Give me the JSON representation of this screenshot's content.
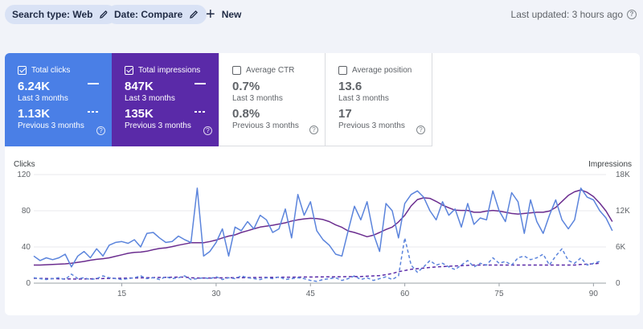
{
  "filters": {
    "search_type": "Search type: Web",
    "date": "Date: Compare",
    "new_label": "New"
  },
  "last_updated": "Last updated: 3 hours ago",
  "metrics": [
    {
      "label": "Total clicks",
      "checked": true,
      "current": "6.24K",
      "current_period": "Last 3 months",
      "previous": "1.13K",
      "previous_period": "Previous 3 months",
      "color": "#4a7fe6"
    },
    {
      "label": "Total impressions",
      "checked": true,
      "current": "847K",
      "current_period": "Last 3 months",
      "previous": "135K",
      "previous_period": "Previous 3 months",
      "color": "#5a2aa8"
    },
    {
      "label": "Average CTR",
      "checked": false,
      "current": "0.7%",
      "current_period": "Last 3 months",
      "previous": "0.8%",
      "previous_period": "Previous 3 months"
    },
    {
      "label": "Average position",
      "checked": false,
      "current": "13.6",
      "current_period": "Last 3 months",
      "previous": "17",
      "previous_period": "Previous 3 months"
    }
  ],
  "chart_data": {
    "type": "line",
    "ylabel_left": "Clicks",
    "ylabel_right": "Impressions",
    "ylim_left": [
      0,
      120
    ],
    "ylim_right": [
      0,
      18000
    ],
    "yticks_left": [
      "0",
      "40",
      "80",
      "120"
    ],
    "yticks_right": [
      "0",
      "6K",
      "12K",
      "18K"
    ],
    "xticks": [
      "15",
      "30",
      "45",
      "60",
      "75",
      "90"
    ],
    "x_range": [
      1,
      92
    ],
    "grid": true,
    "series": [
      {
        "name": "Total clicks",
        "axis": "left",
        "style": "solid",
        "color": "#5b84dc",
        "values": [
          30,
          25,
          28,
          26,
          28,
          32,
          18,
          30,
          35,
          28,
          38,
          30,
          42,
          45,
          46,
          44,
          48,
          40,
          55,
          56,
          50,
          45,
          46,
          52,
          48,
          45,
          105,
          30,
          35,
          45,
          60,
          30,
          62,
          58,
          68,
          60,
          75,
          70,
          56,
          60,
          82,
          50,
          98,
          75,
          90,
          58,
          48,
          42,
          32,
          30,
          58,
          85,
          70,
          90,
          55,
          35,
          88,
          80,
          50,
          88,
          98,
          102,
          95,
          80,
          70,
          90,
          75,
          82,
          62,
          88,
          65,
          72,
          70,
          102,
          80,
          68,
          100,
          90,
          55,
          92,
          68,
          55,
          75,
          92,
          70,
          60,
          70,
          105,
          95,
          92,
          80,
          72,
          58
        ]
      },
      {
        "name": "Total impressions",
        "axis": "right",
        "style": "solid",
        "color": "#6b2d8f",
        "values": [
          3000,
          3000,
          3050,
          3100,
          3150,
          3200,
          3300,
          3450,
          3600,
          3800,
          3950,
          4050,
          4200,
          4450,
          4700,
          4950,
          5100,
          5150,
          5300,
          5550,
          5750,
          5850,
          6050,
          6300,
          6500,
          6700,
          6700,
          6700,
          6900,
          7150,
          7500,
          7800,
          8000,
          8400,
          8700,
          9000,
          9300,
          9450,
          9600,
          9800,
          10000,
          10300,
          10500,
          10650,
          10750,
          10700,
          10550,
          10200,
          9650,
          9250,
          8650,
          8400,
          8050,
          7700,
          7950,
          8400,
          8900,
          9300,
          10150,
          11250,
          12800,
          13850,
          14150,
          14050,
          13550,
          12950,
          12500,
          12100,
          12050,
          12050,
          11750,
          11750,
          11950,
          12050,
          11950,
          11750,
          11550,
          11450,
          11550,
          11650,
          11750,
          11750,
          11950,
          12550,
          13550,
          14550,
          15150,
          15450,
          15050,
          14350,
          13250,
          11950,
          10200
        ]
      },
      {
        "name": "Total clicks (previous)",
        "axis": "left",
        "style": "dashed",
        "color": "#5b84dc",
        "values": [
          6,
          5,
          4,
          5,
          6,
          4,
          10,
          5,
          6,
          4,
          5,
          8,
          6,
          5,
          4,
          5,
          6,
          8,
          5,
          6,
          4,
          7,
          5,
          6,
          8,
          4,
          5,
          6,
          5,
          7,
          4,
          6,
          5,
          8,
          6,
          5,
          4,
          6,
          5,
          7,
          4,
          5,
          6,
          5,
          3,
          2,
          4,
          5,
          6,
          3,
          5,
          8,
          4,
          6,
          3,
          5,
          7,
          4,
          8,
          50,
          20,
          12,
          18,
          25,
          20,
          22,
          18,
          15,
          20,
          25,
          18,
          22,
          20,
          28,
          22,
          24,
          20,
          28,
          30,
          26,
          28,
          32,
          20,
          30,
          38,
          25,
          22,
          28,
          20,
          22,
          24
        ]
      },
      {
        "name": "Total impressions (previous)",
        "axis": "right",
        "style": "dashed",
        "color": "#5a2aa8",
        "values": [
          800,
          780,
          760,
          740,
          720,
          700,
          690,
          680,
          700,
          720,
          740,
          760,
          780,
          800,
          820,
          840,
          860,
          880,
          900,
          920,
          940,
          960,
          980,
          1000,
          1000,
          900,
          850,
          850,
          860,
          870,
          880,
          890,
          900,
          910,
          920,
          930,
          940,
          950,
          960,
          970,
          980,
          990,
          1000,
          1010,
          1020,
          1030,
          1040,
          1050,
          1060,
          1070,
          1080,
          1090,
          1100,
          1150,
          1200,
          1250,
          1400,
          1600,
          1900,
          2100,
          2300,
          2400,
          2500,
          2600,
          2700,
          2750,
          2800,
          2850,
          2900,
          2950,
          3000,
          3000,
          3000,
          3000,
          3000,
          3000,
          3000,
          3000,
          3000,
          3000,
          3000,
          3000,
          3000,
          3000,
          3000,
          3000,
          3000,
          3100,
          3150,
          3200,
          3300
        ]
      }
    ]
  }
}
